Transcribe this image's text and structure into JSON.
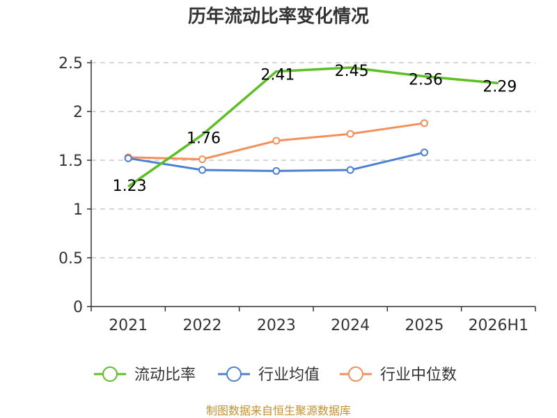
{
  "chart_data": {
    "type": "line",
    "title": "历年流动比率变化情况",
    "categories": [
      "2021",
      "2022",
      "2023",
      "2024",
      "2025",
      "2026H1"
    ],
    "ylim": [
      0,
      2.5
    ],
    "yticks": [
      "0",
      "0.5",
      "1",
      "1.5",
      "2",
      "2.5"
    ],
    "grid": true,
    "legend_position": "bottom",
    "series": [
      {
        "name": "流动比率",
        "color": "#5bc021",
        "values": [
          1.23,
          1.76,
          2.41,
          2.45,
          2.36,
          2.29
        ],
        "labels": [
          "1.23",
          "1.76",
          "2.41",
          "2.45",
          "2.36",
          "2.29"
        ]
      },
      {
        "name": "行业均值",
        "color": "#4b7fd4",
        "values": [
          1.52,
          1.4,
          1.39,
          1.4,
          1.58,
          null
        ]
      },
      {
        "name": "行业中位数",
        "color": "#f58f59",
        "values": [
          1.53,
          1.51,
          1.7,
          1.77,
          1.88,
          null
        ]
      }
    ],
    "source": "制图数据来自恒生聚源数据库"
  }
}
